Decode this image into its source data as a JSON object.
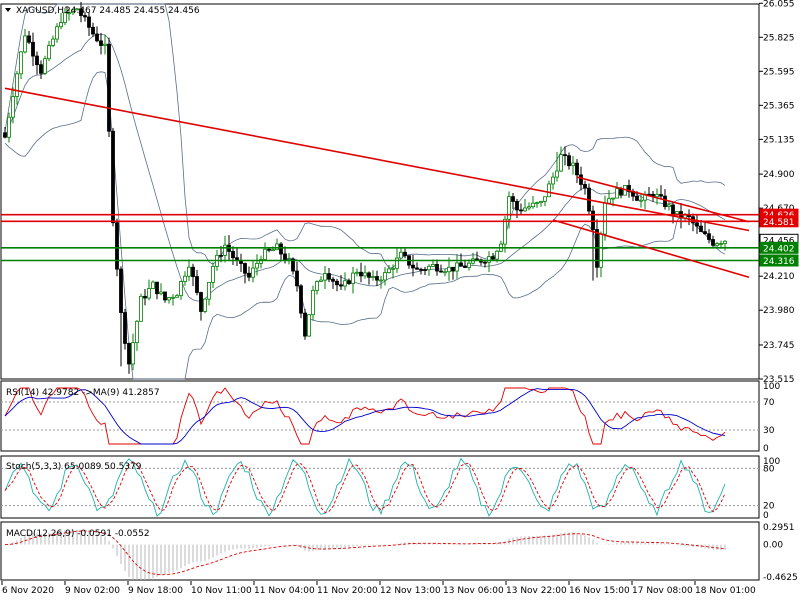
{
  "header": {
    "symbol": "XAGUSD,H1",
    "ohlc": "24.467 24.485 24.455 24.456"
  },
  "colors": {
    "background": "#ffffff",
    "candle_bull": "#008000",
    "candle_bear": "#000000",
    "bands": "#5a6e8c",
    "trendline": "#e00000",
    "resistance": "#e00000",
    "support": "#008000",
    "rsi": "#e00000",
    "rsi_ma": "#0000cc",
    "stoch_main": "#20b2aa",
    "stoch_signal": "#e00000",
    "macd_hist": "#b8b8b8",
    "macd_signal": "#e00000",
    "grid_dash": "#999999"
  },
  "panes": {
    "rsi_label": "RSI(14) 42.9782  ->MA(9) 41.2857",
    "stoch_label": "Stoch(5,3,3) 65.0089 50.5379",
    "macd_label": "MACD(12,26,9) -0.0591 -0.0552"
  },
  "chart_data": [
    {
      "type": "candlestick",
      "title": "XAGUSD,H1",
      "ylim": [
        23.515,
        26.05
      ],
      "price_ticks": [
        "26.055",
        "25.825",
        "25.595",
        "25.365",
        "25.135",
        "24.900",
        "24.670",
        "24.440",
        "24.210",
        "23.980",
        "23.745",
        "23.515"
      ],
      "levels": [
        {
          "label": "24.626",
          "value": 24.626,
          "kind": "resistance"
        },
        {
          "label": "24.581",
          "value": 24.581,
          "kind": "resistance"
        },
        {
          "label": "24.456",
          "value": 24.456,
          "kind": "current"
        },
        {
          "label": "24.402",
          "value": 24.402,
          "kind": "support"
        },
        {
          "label": "24.316",
          "value": 24.316,
          "kind": "support"
        }
      ],
      "x_labels": [
        "6 Nov 2020",
        "9 Nov 02:00",
        "9 Nov 18:00",
        "10 Nov 11:00",
        "11 Nov 04:00",
        "11 Nov 20:00",
        "12 Nov 13:00",
        "13 Nov 06:00",
        "13 Nov 22:00",
        "16 Nov 15:00",
        "17 Nov 08:00",
        "18 Nov 01:00"
      ],
      "trendlines": [
        {
          "from": [
            0,
            25.48
          ],
          "to": [
            180,
            24.55
          ]
        },
        {
          "from": [
            143,
            24.88
          ],
          "to": [
            180,
            24.62
          ]
        },
        {
          "from": [
            137,
            24.59
          ],
          "to": [
            180,
            24.25
          ]
        }
      ],
      "anchors": [
        [
          0,
          25.15
        ],
        [
          2,
          25.45
        ],
        [
          5,
          25.85
        ],
        [
          9,
          25.6
        ],
        [
          14,
          25.95
        ],
        [
          18,
          26.02
        ],
        [
          22,
          25.85
        ],
        [
          25,
          25.75
        ],
        [
          27,
          24.6
        ],
        [
          29,
          23.95
        ],
        [
          31,
          23.62
        ],
        [
          34,
          24.05
        ],
        [
          37,
          24.15
        ],
        [
          40,
          24.05
        ],
        [
          43,
          24.1
        ],
        [
          46,
          24.3
        ],
        [
          49,
          23.98
        ],
        [
          52,
          24.28
        ],
        [
          55,
          24.42
        ],
        [
          58,
          24.3
        ],
        [
          61,
          24.2
        ],
        [
          64,
          24.35
        ],
        [
          68,
          24.4
        ],
        [
          71,
          24.3
        ],
        [
          73,
          24.15
        ],
        [
          75,
          23.82
        ],
        [
          77,
          24.1
        ],
        [
          80,
          24.25
        ],
        [
          84,
          24.12
        ],
        [
          88,
          24.25
        ],
        [
          92,
          24.18
        ],
        [
          95,
          24.22
        ],
        [
          99,
          24.35
        ],
        [
          103,
          24.25
        ],
        [
          107,
          24.28
        ],
        [
          111,
          24.26
        ],
        [
          115,
          24.28
        ],
        [
          119,
          24.32
        ],
        [
          122,
          24.35
        ],
        [
          124,
          24.45
        ],
        [
          126,
          24.75
        ],
        [
          128,
          24.66
        ],
        [
          131,
          24.68
        ],
        [
          134,
          24.7
        ],
        [
          137,
          24.88
        ],
        [
          139,
          25.02
        ],
        [
          142,
          24.95
        ],
        [
          145,
          24.8
        ],
        [
          147,
          24.55
        ],
        [
          148,
          24.3
        ],
        [
          150,
          24.72
        ],
        [
          153,
          24.78
        ],
        [
          156,
          24.8
        ],
        [
          159,
          24.72
        ],
        [
          162,
          24.77
        ],
        [
          165,
          24.7
        ],
        [
          168,
          24.62
        ],
        [
          171,
          24.6
        ],
        [
          174,
          24.5
        ],
        [
          177,
          24.44
        ],
        [
          180,
          24.456
        ]
      ]
    },
    {
      "type": "line",
      "title": "RSI(14)",
      "ylim": [
        0,
        100
      ],
      "levels": [
        70,
        30
      ],
      "y_ticks": [
        "100",
        "70",
        "30",
        "0"
      ],
      "series": [
        {
          "name": "RSI(14)",
          "last": 42.9782
        },
        {
          "name": "MA(9)",
          "last": 41.2857
        }
      ]
    },
    {
      "type": "line",
      "title": "Stoch(5,3,3)",
      "ylim": [
        0,
        100
      ],
      "levels": [
        80,
        20
      ],
      "y_ticks": [
        "100",
        "80",
        "20",
        "0"
      ],
      "series": [
        {
          "name": "Main",
          "last": 65.0089
        },
        {
          "name": "Signal",
          "last": 50.5379
        }
      ]
    },
    {
      "type": "bar",
      "title": "MACD(12,26,9)",
      "ylim": [
        -0.4625,
        0.2951
      ],
      "y_ticks": [
        "0.2951",
        "0.00",
        "-0.4625"
      ],
      "series": [
        {
          "name": "MACD",
          "last": -0.0591
        },
        {
          "name": "Signal",
          "last": -0.0552
        }
      ]
    }
  ]
}
